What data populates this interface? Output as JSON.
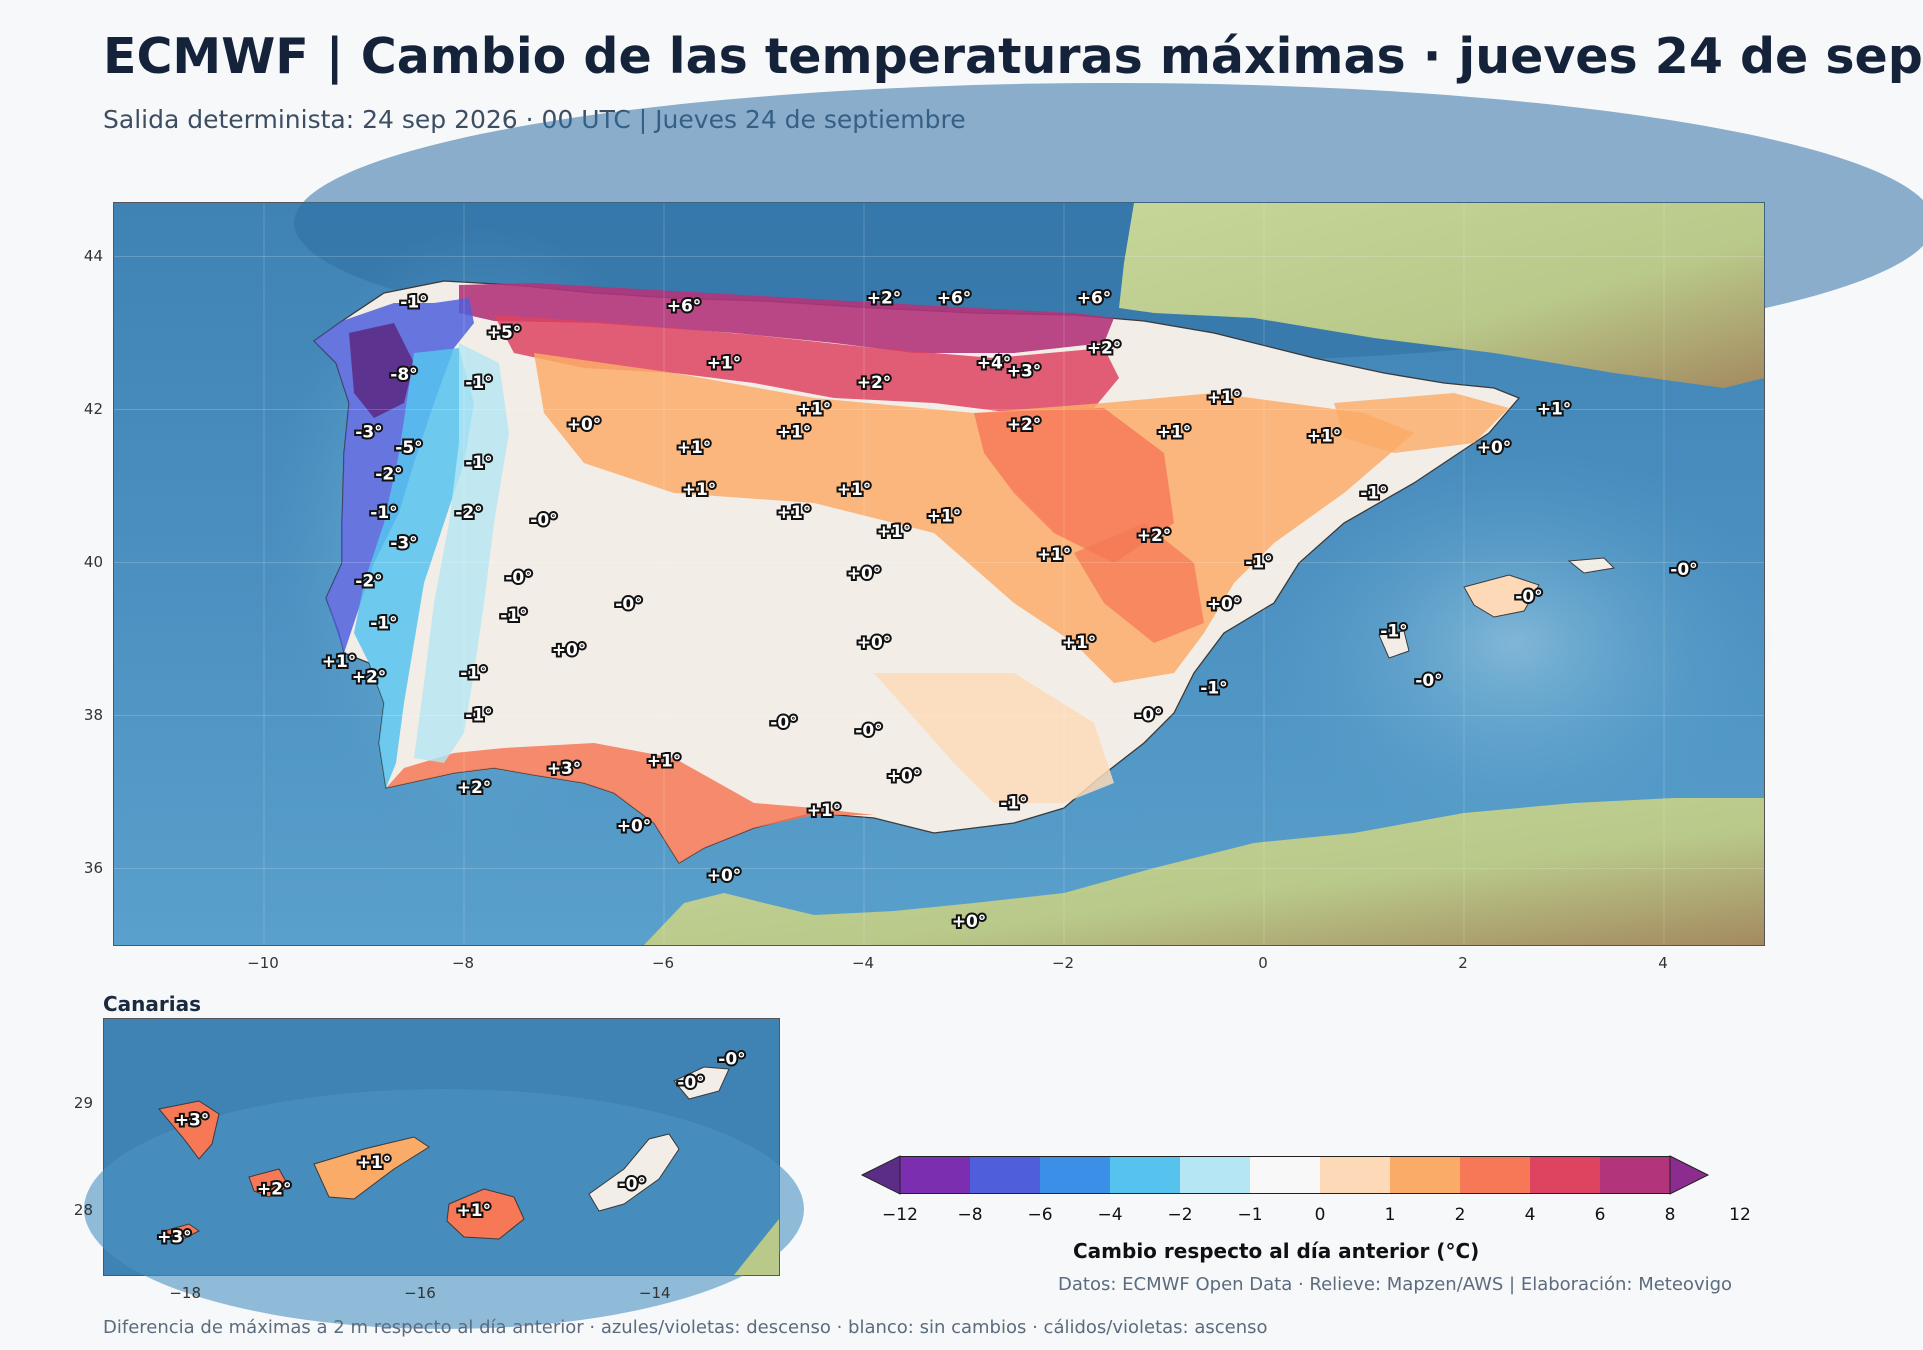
{
  "header": {
    "title": "ECMWF | Cambio de las temperaturas máximas · jueves 24 de sep",
    "subtitle": "Salida determinista: 24 sep 2026 · 00 UTC  |  Jueves 24 de septiembre"
  },
  "main_map": {
    "lon_range": [
      -11.5,
      5.0
    ],
    "lat_range": [
      35.0,
      44.7
    ],
    "x_ticks": [
      "−10",
      "−8",
      "−6",
      "−4",
      "−2",
      "0",
      "2",
      "4"
    ],
    "x_tick_values": [
      -10,
      -8,
      -6,
      -4,
      -2,
      0,
      2,
      4
    ],
    "y_ticks": [
      "36",
      "38",
      "40",
      "42",
      "44"
    ],
    "y_tick_values": [
      36,
      38,
      40,
      42,
      44
    ],
    "labels": [
      {
        "text": "-1°",
        "lon": -8.5,
        "lat": 43.4
      },
      {
        "text": "+6°",
        "lon": -5.8,
        "lat": 43.35
      },
      {
        "text": "+2°",
        "lon": -3.8,
        "lat": 43.45
      },
      {
        "text": "+6°",
        "lon": -3.1,
        "lat": 43.45
      },
      {
        "text": "+6°",
        "lon": -1.7,
        "lat": 43.45
      },
      {
        "text": "+5°",
        "lon": -7.6,
        "lat": 43.0
      },
      {
        "text": "+2°",
        "lon": -1.6,
        "lat": 42.8
      },
      {
        "text": "+1°",
        "lon": -5.4,
        "lat": 42.6
      },
      {
        "text": "+4°",
        "lon": -2.7,
        "lat": 42.6
      },
      {
        "text": "+3°",
        "lon": -2.4,
        "lat": 42.5
      },
      {
        "text": "-8°",
        "lon": -8.6,
        "lat": 42.45
      },
      {
        "text": "-1°",
        "lon": -7.85,
        "lat": 42.35
      },
      {
        "text": "+2°",
        "lon": -3.9,
        "lat": 42.35
      },
      {
        "text": "+1°",
        "lon": -0.4,
        "lat": 42.15
      },
      {
        "text": "+1°",
        "lon": -4.5,
        "lat": 42.0
      },
      {
        "text": "+1°",
        "lon": 2.9,
        "lat": 42.0
      },
      {
        "text": "+0°",
        "lon": -6.8,
        "lat": 41.8
      },
      {
        "text": "+2°",
        "lon": -2.4,
        "lat": 41.8
      },
      {
        "text": "-3°",
        "lon": -8.95,
        "lat": 41.7
      },
      {
        "text": "+1°",
        "lon": -4.7,
        "lat": 41.7
      },
      {
        "text": "+1°",
        "lon": -0.9,
        "lat": 41.7
      },
      {
        "text": "+1°",
        "lon": 0.6,
        "lat": 41.65
      },
      {
        "text": "-5°",
        "lon": -8.55,
        "lat": 41.5
      },
      {
        "text": "+1°",
        "lon": -5.7,
        "lat": 41.5
      },
      {
        "text": "+0°",
        "lon": 2.3,
        "lat": 41.5
      },
      {
        "text": "-1°",
        "lon": -7.85,
        "lat": 41.3
      },
      {
        "text": "-2°",
        "lon": -8.75,
        "lat": 41.15
      },
      {
        "text": "+1°",
        "lon": -5.65,
        "lat": 40.95
      },
      {
        "text": "+1°",
        "lon": -4.1,
        "lat": 40.95
      },
      {
        "text": "-1°",
        "lon": 1.1,
        "lat": 40.9
      },
      {
        "text": "-1°",
        "lon": -8.8,
        "lat": 40.65
      },
      {
        "text": "-2°",
        "lon": -7.95,
        "lat": 40.65
      },
      {
        "text": "+1°",
        "lon": -4.7,
        "lat": 40.65
      },
      {
        "text": "+1°",
        "lon": -3.2,
        "lat": 40.6
      },
      {
        "text": "-0°",
        "lon": -7.2,
        "lat": 40.55
      },
      {
        "text": "+1°",
        "lon": -3.7,
        "lat": 40.4
      },
      {
        "text": "+2°",
        "lon": -1.1,
        "lat": 40.35
      },
      {
        "text": "-3°",
        "lon": -8.6,
        "lat": 40.25
      },
      {
        "text": "+1°",
        "lon": -2.1,
        "lat": 40.1
      },
      {
        "text": "-1°",
        "lon": -0.05,
        "lat": 40.0
      },
      {
        "text": "-0°",
        "lon": 4.2,
        "lat": 39.9
      },
      {
        "text": "+0°",
        "lon": -4.0,
        "lat": 39.85
      },
      {
        "text": "-0°",
        "lon": -7.45,
        "lat": 39.8
      },
      {
        "text": "-2°",
        "lon": -8.95,
        "lat": 39.75
      },
      {
        "text": "-0°",
        "lon": 2.65,
        "lat": 39.55
      },
      {
        "text": "-0°",
        "lon": -6.35,
        "lat": 39.45
      },
      {
        "text": "+0°",
        "lon": -0.4,
        "lat": 39.45
      },
      {
        "text": "-1°",
        "lon": -7.5,
        "lat": 39.3
      },
      {
        "text": "-1°",
        "lon": -8.8,
        "lat": 39.2
      },
      {
        "text": "-1°",
        "lon": 1.3,
        "lat": 39.1
      },
      {
        "text": "+0°",
        "lon": -3.9,
        "lat": 38.95
      },
      {
        "text": "+1°",
        "lon": -1.85,
        "lat": 38.95
      },
      {
        "text": "+0°",
        "lon": -6.95,
        "lat": 38.85
      },
      {
        "text": "+1°",
        "lon": -9.25,
        "lat": 38.7
      },
      {
        "text": "+2°",
        "lon": -8.95,
        "lat": 38.5
      },
      {
        "text": "-1°",
        "lon": -7.9,
        "lat": 38.55
      },
      {
        "text": "-0°",
        "lon": 1.65,
        "lat": 38.45
      },
      {
        "text": "-1°",
        "lon": -0.5,
        "lat": 38.35
      },
      {
        "text": "-1°",
        "lon": -7.85,
        "lat": 38.0
      },
      {
        "text": "-0°",
        "lon": -1.15,
        "lat": 38.0
      },
      {
        "text": "-0°",
        "lon": -4.8,
        "lat": 37.9
      },
      {
        "text": "-0°",
        "lon": -3.95,
        "lat": 37.8
      },
      {
        "text": "+1°",
        "lon": -6.0,
        "lat": 37.4
      },
      {
        "text": "+3°",
        "lon": -7.0,
        "lat": 37.3
      },
      {
        "text": "+0°",
        "lon": -3.6,
        "lat": 37.2
      },
      {
        "text": "+2°",
        "lon": -7.9,
        "lat": 37.05
      },
      {
        "text": "-1°",
        "lon": -2.5,
        "lat": 36.85
      },
      {
        "text": "+1°",
        "lon": -4.4,
        "lat": 36.75
      },
      {
        "text": "+0°",
        "lon": -6.3,
        "lat": 36.55
      },
      {
        "text": "+0°",
        "lon": -5.4,
        "lat": 35.9
      },
      {
        "text": "+0°",
        "lon": -2.95,
        "lat": 35.3
      }
    ]
  },
  "canarias": {
    "title": "Canarias",
    "lon_range": [
      -18.7,
      -12.95
    ],
    "lat_range": [
      27.4,
      29.8
    ],
    "x_ticks": [
      "−18",
      "−16",
      "−14"
    ],
    "x_tick_values": [
      -18,
      -16,
      -14
    ],
    "y_ticks": [
      "28",
      "29"
    ],
    "y_tick_values": [
      28,
      29
    ],
    "labels": [
      {
        "text": "+3°",
        "lon": -17.95,
        "lat": 28.85
      },
      {
        "text": "+2°",
        "lon": -17.25,
        "lat": 28.2
      },
      {
        "text": "+1°",
        "lon": -16.4,
        "lat": 28.45
      },
      {
        "text": "+1°",
        "lon": -15.55,
        "lat": 28.0
      },
      {
        "text": "-0°",
        "lon": -14.2,
        "lat": 28.25
      },
      {
        "text": "-0°",
        "lon": -13.7,
        "lat": 29.2
      },
      {
        "text": "-0°",
        "lon": -13.35,
        "lat": 29.42
      },
      {
        "text": "+3°",
        "lon": -18.1,
        "lat": 27.75
      }
    ]
  },
  "colorbar": {
    "title": "Cambio respecto al día anterior (°C)",
    "tick_labels": [
      "−12",
      "−8",
      "−6",
      "−4",
      "−2",
      "−1",
      "0",
      "1",
      "2",
      "4",
      "6",
      "8",
      "12"
    ],
    "colors": [
      "#5b2d87",
      "#7b2fb0",
      "#4f5fdc",
      "#3b8fe6",
      "#56c3ef",
      "#b4e6f4",
      "#f8f8f8",
      "#fdd9b8",
      "#fbab68",
      "#f67856",
      "#de4360",
      "#b2347a",
      "#8c2c8e"
    ]
  },
  "credits": "Datos: ECMWF Open Data · Relieve: Mapzen/AWS  |  Elaboración: Meteovigo",
  "footer": "Diferencia de máximas a 2 m respecto al día anterior · azules/violetas: descenso · blanco: sin cambios · cálidos/violetas: ascenso"
}
